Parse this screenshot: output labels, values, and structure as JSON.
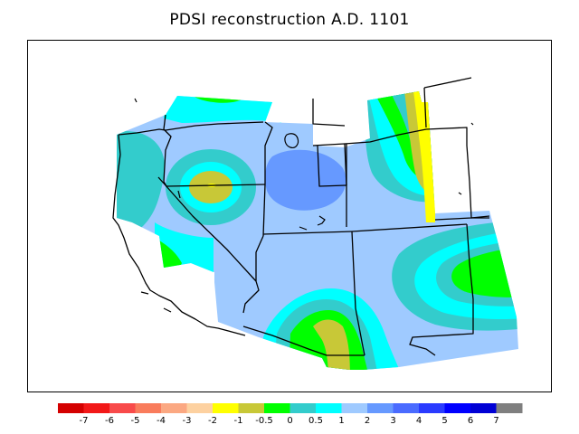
{
  "title": "PDSI reconstruction A.D. 1101",
  "legend": {
    "colors": [
      "#d40000",
      "#f21818",
      "#f84a4a",
      "#f97c5c",
      "#fba882",
      "#fdd1a0",
      "#ffff00",
      "#c8c837",
      "#00ff00",
      "#33cccc",
      "#00ffff",
      "#9fcaff",
      "#6699ff",
      "#4a6bff",
      "#2a3bff",
      "#0000ff",
      "#0000d5",
      "#7f7f7f"
    ],
    "labels": [
      "-7",
      "-6",
      "-5",
      "-4",
      "-3",
      "-2",
      "-1",
      "-0.5",
      "0",
      "0.5",
      "1",
      "2",
      "3",
      "4",
      "5",
      "6",
      "7"
    ]
  },
  "map_colors": {
    "base": "#9fcaff",
    "teal": "#33cccc",
    "cyan": "#00ffff",
    "green": "#00ff00",
    "olive": "#c8c837",
    "yellow": "#ffff00",
    "blue": "#6699ff",
    "land_blank": "#ffffff",
    "boundary": "#000000"
  }
}
